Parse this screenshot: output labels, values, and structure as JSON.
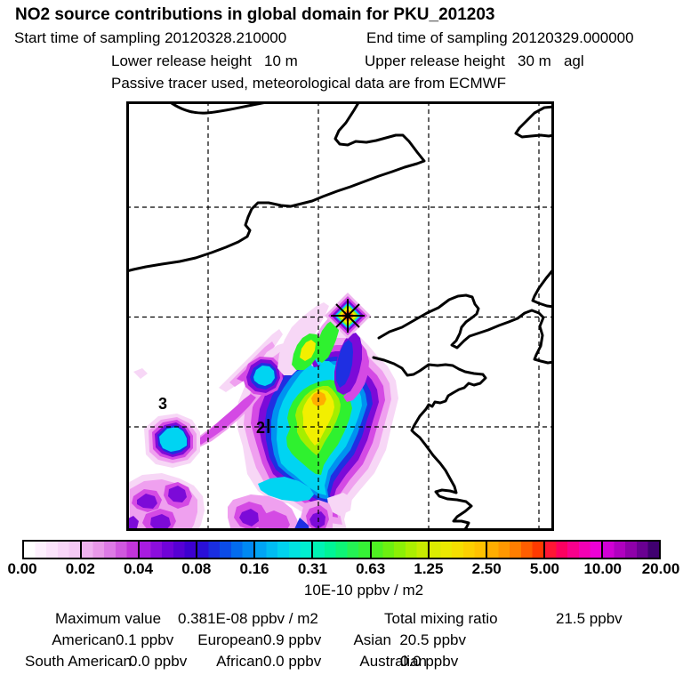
{
  "header": {
    "title": "NO2 source contributions in global domain for PKU_201203",
    "sampling_start": "Start time of sampling 20120328.210000",
    "sampling_end": "End time of sampling 20120329.000000",
    "release_lower": "Lower release height   10 m",
    "release_upper": "Upper release height   30 m   agl",
    "tracer_info": "Passive tracer used, meteorological data are from ECMWF"
  },
  "map": {
    "site_labels": [
      {
        "text": "3"
      },
      {
        "text": "2"
      }
    ],
    "marker": "release-site-asterisk-diamond"
  },
  "colorbar": {
    "ticks": [
      "0.00",
      "0.02",
      "0.04",
      "0.08",
      "0.16",
      "0.31",
      "0.63",
      "1.25",
      "2.50",
      "5.00",
      "10.00",
      "20.00"
    ],
    "units": "10E-10 ppbv / m2",
    "segments": [
      [
        "#ffffff",
        "#fdf0fd",
        "#fbe3fb",
        "#f8d5f8",
        "#f5c8f5"
      ],
      [
        "#efb2ef",
        "#e898e8",
        "#dd7ae5",
        "#d058df",
        "#c235d9"
      ],
      [
        "#a81ce0",
        "#8c0edd",
        "#7003d9",
        "#5600d4",
        "#3d00d0"
      ],
      [
        "#2a10d8",
        "#1a2ee0",
        "#0b4ce8",
        "#036cee",
        "#0089f2"
      ],
      [
        "#00a4f4",
        "#00bcf2",
        "#00d2ee",
        "#00e3e0",
        "#00efd0"
      ],
      [
        "#00f2b4",
        "#00f496",
        "#0ef476",
        "#24f254",
        "#36f136"
      ],
      [
        "#4ff122",
        "#6df011",
        "#8cef06",
        "#abee00",
        "#c7ec00"
      ],
      [
        "#dcec00",
        "#ebe900",
        "#f5de00",
        "#fcd000",
        "#ffc200"
      ],
      [
        "#ffae00",
        "#ff9800",
        "#ff7e00",
        "#ff5e00",
        "#ff3a00"
      ],
      [
        "#ff1634",
        "#fc0060",
        "#f8008c",
        "#f300b4",
        "#ee00d6"
      ],
      [
        "#d100d4",
        "#b000c0",
        "#8f00aa",
        "#6a0092",
        "#400070"
      ]
    ]
  },
  "stats": {
    "maximum": {
      "label": "Maximum value",
      "value": "0.381E-08 ppbv / m2"
    },
    "total": {
      "label": "Total mixing ratio",
      "value": "21.5 ppbv"
    },
    "contributions": [
      {
        "name": "American",
        "value": "0.1 ppbv"
      },
      {
        "name": "European",
        "value": "0.9 ppbv"
      },
      {
        "name": "Asian",
        "value": "20.5 ppbv"
      },
      {
        "name": "South American",
        "value": "0.0 ppbv"
      },
      {
        "name": "African",
        "value": "0.0 ppbv"
      },
      {
        "name": "Australian",
        "value": "0.0 ppbv"
      }
    ]
  },
  "palette": {
    "pale": "#f7d7f6",
    "lmag": "#efa0ef",
    "mag": "#d44ae4",
    "purple": "#7c0ad8",
    "blue": "#1f2fe2",
    "lblue": "#0092f0",
    "cyan": "#00d4f2",
    "green": "#2ff12f",
    "ygreen": "#a5ee00",
    "yellow": "#f2ef00",
    "orange": "#ffae00",
    "ored": "#ff9000",
    "red": "#ff2030",
    "maroon": "#541a3e",
    "pinkhalo": "#eeb4ee"
  }
}
